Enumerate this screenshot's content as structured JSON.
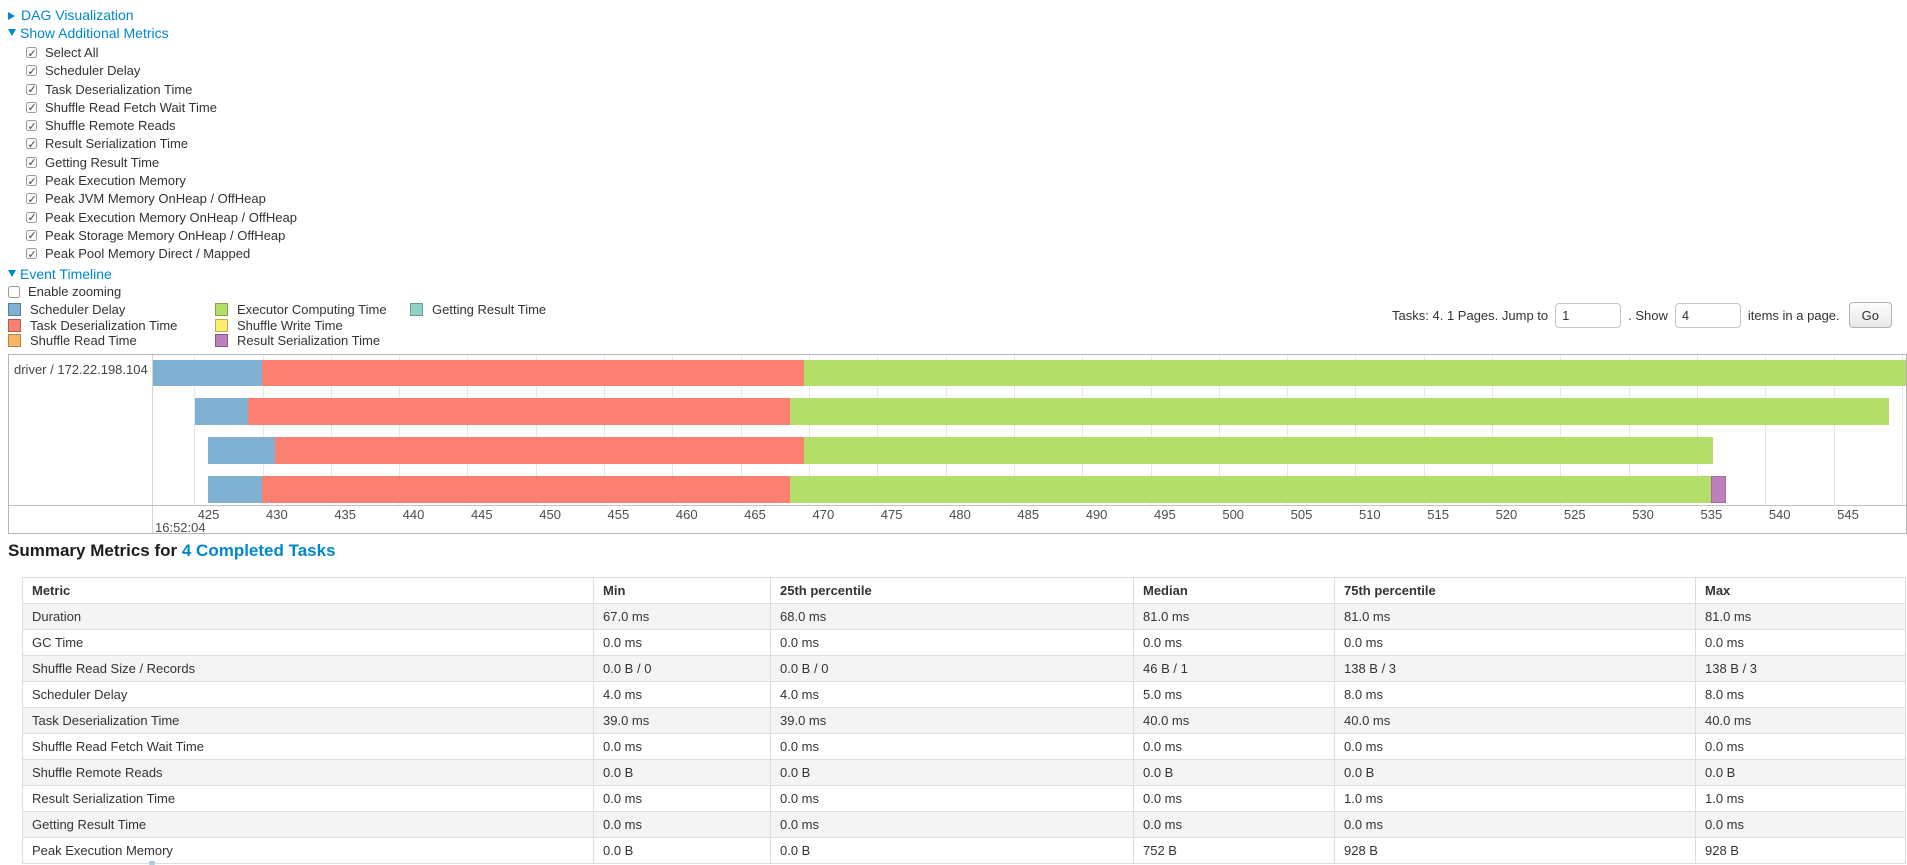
{
  "header": {
    "dag_label": "DAG Visualization",
    "metrics_toggle_label": "Show Additional Metrics",
    "event_timeline_label": "Event Timeline",
    "enable_zooming_label": "Enable zooming"
  },
  "metrics_checkboxes": [
    {
      "label": "Select All",
      "checked": true
    },
    {
      "label": "Scheduler Delay",
      "checked": true
    },
    {
      "label": "Task Deserialization Time",
      "checked": true
    },
    {
      "label": "Shuffle Read Fetch Wait Time",
      "checked": true
    },
    {
      "label": "Shuffle Remote Reads",
      "checked": true
    },
    {
      "label": "Result Serialization Time",
      "checked": true
    },
    {
      "label": "Getting Result Time",
      "checked": true
    },
    {
      "label": "Peak Execution Memory",
      "checked": true
    },
    {
      "label": "Peak JVM Memory OnHeap / OffHeap",
      "checked": true
    },
    {
      "label": "Peak Execution Memory OnHeap / OffHeap",
      "checked": true
    },
    {
      "label": "Peak Storage Memory OnHeap / OffHeap",
      "checked": true
    },
    {
      "label": "Peak Pool Memory Direct / Mapped",
      "checked": true
    }
  ],
  "pagination": {
    "tasks_text": "Tasks: 4. 1 Pages. Jump to",
    "jump_value": "1",
    "show_text": ". Show",
    "show_value": "4",
    "suffix_text": "items in a page.",
    "go_label": "Go"
  },
  "legend": {
    "columns": [
      [
        {
          "key": "scheduler_delay",
          "label": "Scheduler Delay"
        },
        {
          "key": "task_deserialization",
          "label": "Task Deserialization Time"
        },
        {
          "key": "shuffle_read",
          "label": "Shuffle Read Time"
        }
      ],
      [
        {
          "key": "executor_computing",
          "label": "Executor Computing Time"
        },
        {
          "key": "shuffle_write",
          "label": "Shuffle Write Time"
        },
        {
          "key": "result_serialization",
          "label": "Result Serialization Time"
        }
      ],
      [
        {
          "key": "getting_result",
          "label": "Getting Result Time"
        }
      ]
    ]
  },
  "chart_data": {
    "type": "timeline",
    "group_label": "driver / 172.22.198.104",
    "colors": {
      "scheduler_delay": "#80B1D3",
      "task_deserialization": "#FB8072",
      "shuffle_read": "#FDB462",
      "executor_computing": "#B3DE69",
      "shuffle_write": "#FFED6F",
      "result_serialization": "#BC80BD",
      "getting_result": "#8DD3C7"
    },
    "axis": {
      "tick_start": 425,
      "tick_end": 550,
      "tick_step": 5,
      "unit": "ms",
      "major_label": "16:52:04"
    },
    "tasks": [
      {
        "segments": [
          {
            "key": "scheduler_delay",
            "from": 421.9,
            "to": 429.9
          },
          {
            "key": "task_deserialization",
            "from": 429.9,
            "to": 469.6
          },
          {
            "key": "executor_computing",
            "from": 469.6,
            "to": 550.6
          }
        ]
      },
      {
        "segments": [
          {
            "key": "scheduler_delay",
            "from": 425.0,
            "to": 428.9
          },
          {
            "key": "task_deserialization",
            "from": 428.9,
            "to": 468.6
          },
          {
            "key": "executor_computing",
            "from": 468.6,
            "to": 549.0
          }
        ]
      },
      {
        "segments": [
          {
            "key": "scheduler_delay",
            "from": 426.0,
            "to": 430.9
          },
          {
            "key": "task_deserialization",
            "from": 430.9,
            "to": 469.6
          },
          {
            "key": "executor_computing",
            "from": 469.6,
            "to": 536.1
          }
        ]
      },
      {
        "segments": [
          {
            "key": "scheduler_delay",
            "from": 426.0,
            "to": 429.9
          },
          {
            "key": "task_deserialization",
            "from": 429.9,
            "to": 468.6
          },
          {
            "key": "executor_computing",
            "from": 468.6,
            "to": 536.0
          },
          {
            "key": "result_serialization",
            "from": 536.0,
            "to": 537.1
          }
        ]
      }
    ]
  },
  "summary": {
    "title_prefix": "Summary Metrics for",
    "title_link": "4 Completed Tasks",
    "columns": [
      "Metric",
      "Min",
      "25th percentile",
      "Median",
      "75th percentile",
      "Max"
    ],
    "rows": [
      {
        "metric": "Duration",
        "values": [
          "67.0 ms",
          "68.0 ms",
          "81.0 ms",
          "81.0 ms",
          "81.0 ms"
        ]
      },
      {
        "metric": "GC Time",
        "values": [
          "0.0 ms",
          "0.0 ms",
          "0.0 ms",
          "0.0 ms",
          "0.0 ms"
        ]
      },
      {
        "metric": "Shuffle Read Size / Records",
        "values": [
          "0.0 B / 0",
          "0.0 B / 0",
          "46 B / 1",
          "138 B / 3",
          "138 B / 3"
        ]
      },
      {
        "metric": "Scheduler Delay",
        "values": [
          "4.0 ms",
          "4.0 ms",
          "5.0 ms",
          "8.0 ms",
          "8.0 ms"
        ]
      },
      {
        "metric": "Task Deserialization Time",
        "values": [
          "39.0 ms",
          "39.0 ms",
          "40.0 ms",
          "40.0 ms",
          "40.0 ms"
        ]
      },
      {
        "metric": "Shuffle Read Fetch Wait Time",
        "values": [
          "0.0 ms",
          "0.0 ms",
          "0.0 ms",
          "0.0 ms",
          "0.0 ms"
        ]
      },
      {
        "metric": "Shuffle Remote Reads",
        "values": [
          "0.0 B",
          "0.0 B",
          "0.0 B",
          "0.0 B",
          "0.0 B"
        ]
      },
      {
        "metric": "Result Serialization Time",
        "values": [
          "0.0 ms",
          "0.0 ms",
          "0.0 ms",
          "1.0 ms",
          "1.0 ms"
        ]
      },
      {
        "metric": "Getting Result Time",
        "values": [
          "0.0 ms",
          "0.0 ms",
          "0.0 ms",
          "0.0 ms",
          "0.0 ms"
        ]
      },
      {
        "metric": "Peak Execution Memory",
        "values": [
          "0.0 B",
          "0.0 B",
          "752 B",
          "928 B",
          "928 B"
        ]
      }
    ]
  },
  "colors": {
    "link": "#0088cc"
  }
}
